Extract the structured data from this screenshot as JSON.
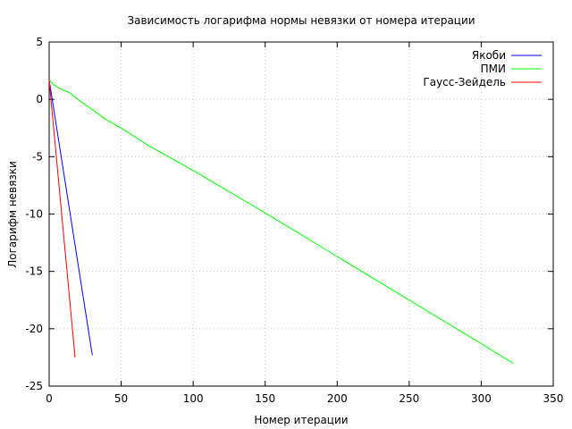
{
  "chart_data": {
    "type": "line",
    "title": "Зависимость логарифма нормы невязки от номера итерации",
    "xlabel": "Номер итерации",
    "ylabel": "Логарифм невязки",
    "xlim": [
      0,
      350
    ],
    "ylim": [
      -25,
      5
    ],
    "xticks": [
      0,
      50,
      100,
      150,
      200,
      250,
      300,
      350
    ],
    "yticks": [
      5,
      0,
      -5,
      -10,
      -15,
      -20,
      -25
    ],
    "grid": true,
    "legend_position": "top-right",
    "series": [
      {
        "name": "Якоби",
        "color": "#0000ff",
        "points": [
          [
            0,
            1.7
          ],
          [
            30,
            -22.3
          ]
        ]
      },
      {
        "name": "ПМИ",
        "color": "#00ff00",
        "points": [
          [
            0,
            1.7
          ],
          [
            3,
            1.3
          ],
          [
            8,
            0.9
          ],
          [
            14,
            0.6
          ],
          [
            20,
            0.0
          ],
          [
            30,
            -0.9
          ],
          [
            40,
            -1.8
          ],
          [
            50,
            -2.5
          ],
          [
            70,
            -4.1
          ],
          [
            100,
            -6.2
          ],
          [
            150,
            -9.9
          ],
          [
            200,
            -13.7
          ],
          [
            250,
            -17.5
          ],
          [
            300,
            -21.3
          ],
          [
            322,
            -23.0
          ]
        ]
      },
      {
        "name": "Гаусс-Зейдель",
        "color": "#ff0000",
        "points": [
          [
            0,
            1.7
          ],
          [
            18,
            -22.5
          ]
        ]
      }
    ]
  }
}
